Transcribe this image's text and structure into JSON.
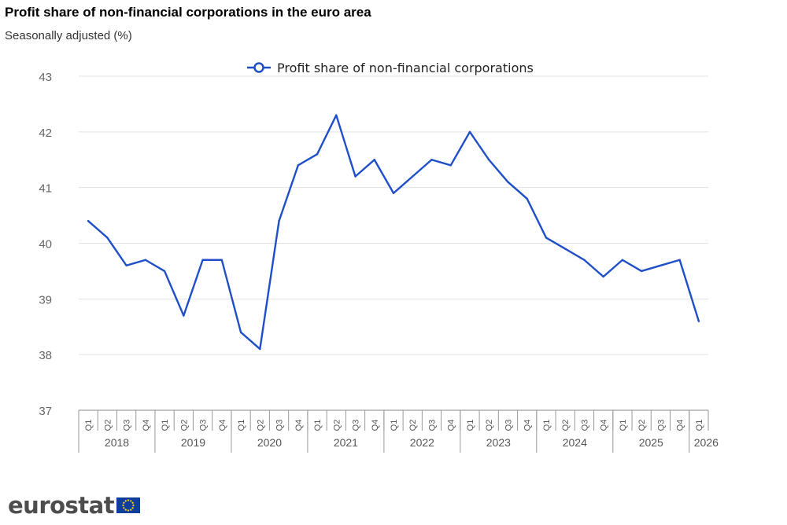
{
  "chart_data": {
    "type": "line",
    "title": "Profit share of non-financial corporations in the euro area",
    "subtitle": "Seasonally adjusted (%)",
    "xlabel": "",
    "ylabel": "",
    "ylim": [
      37,
      43
    ],
    "yticks": [
      "43",
      "42",
      "41",
      "40",
      "39",
      "38",
      "37"
    ],
    "grid": true,
    "legend_position": "top-center",
    "quarters": [
      "Q1",
      "Q2",
      "Q3",
      "Q4",
      "Q1",
      "Q2",
      "Q3",
      "Q4",
      "Q1",
      "Q2",
      "Q3",
      "Q4",
      "Q1",
      "Q2",
      "Q3",
      "Q4",
      "Q1",
      "Q2",
      "Q3",
      "Q4",
      "Q1",
      "Q2",
      "Q3",
      "Q4",
      "Q1",
      "Q2",
      "Q3",
      "Q4",
      "Q1",
      "Q2",
      "Q3",
      "Q4",
      "Q1"
    ],
    "years": [
      {
        "label": "2018",
        "quarters": 4
      },
      {
        "label": "2019",
        "quarters": 4
      },
      {
        "label": "2020",
        "quarters": 4
      },
      {
        "label": "2021",
        "quarters": 4
      },
      {
        "label": "2022",
        "quarters": 4
      },
      {
        "label": "2023",
        "quarters": 4
      },
      {
        "label": "2024",
        "quarters": 4
      },
      {
        "label": "2025",
        "quarters": 4
      },
      {
        "label": "2026",
        "quarters": 1
      }
    ],
    "series": [
      {
        "name": "Profit share of non-financial corporations",
        "color": "#1f4fc8",
        "values": [
          40.4,
          40.1,
          39.6,
          39.7,
          39.5,
          38.7,
          39.7,
          39.7,
          38.4,
          38.1,
          40.4,
          41.4,
          41.6,
          42.3,
          41.2,
          41.5,
          40.9,
          41.2,
          41.5,
          41.4,
          42.0,
          41.5,
          41.1,
          40.8,
          40.1,
          39.9,
          39.7,
          39.4,
          39.7,
          39.5,
          39.6,
          39.7,
          38.6
        ]
      }
    ]
  },
  "branding": {
    "logo_text": "eurostat",
    "flag_color": "#0f3d9e",
    "star_color": "#ffdd00"
  }
}
